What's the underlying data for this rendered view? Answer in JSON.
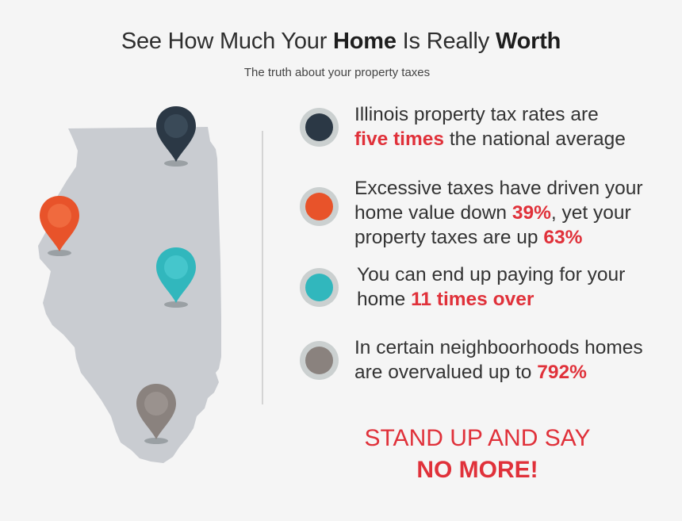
{
  "header": {
    "title_part1": "See How Much Your ",
    "title_bold1": "Home",
    "title_part2": " Is Really ",
    "title_bold2": "Worth",
    "subtitle": "The truth about your property taxes"
  },
  "colors": {
    "background": "#f5f5f5",
    "map": "#c9ccd1",
    "highlight": "#e0313a",
    "navy": "#2b3845",
    "orange": "#e8532a",
    "teal": "#31b7bd",
    "taupe": "#8a827e"
  },
  "map": {
    "icon": "illinois-map-icon",
    "pins": [
      {
        "name": "navy-pin",
        "color": "#2b3845"
      },
      {
        "name": "orange-pin",
        "color": "#e8532a"
      },
      {
        "name": "teal-pin",
        "color": "#31b7bd"
      },
      {
        "name": "taupe-pin",
        "color": "#8a827e"
      }
    ]
  },
  "facts": [
    {
      "color": "#2b3845",
      "line1": "Illinois property tax rates are",
      "hl1": "five times",
      "line2_rest": " the national average"
    },
    {
      "color": "#e8532a",
      "line1": "Excessive taxes have driven your",
      "line2_pre": "home value down ",
      "hl1": "39%",
      "line2_post": ", yet your",
      "line3_pre": "property taxes are up ",
      "hl2": "63%"
    },
    {
      "color": "#31b7bd",
      "line1": "You can end up paying for your",
      "line2_pre": "home ",
      "hl1": "11 times over"
    },
    {
      "color": "#8a827e",
      "line1": "In certain neighboorhoods homes",
      "line2_pre": "are overvalued up to ",
      "hl1": "792%"
    }
  ],
  "cta": {
    "line1": "STAND UP AND SAY",
    "line2": "NO MORE!"
  }
}
